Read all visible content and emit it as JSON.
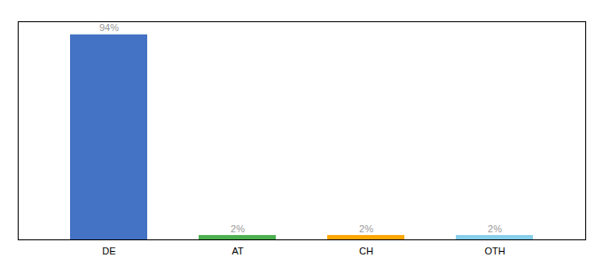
{
  "chart_data": {
    "type": "bar",
    "categories": [
      "DE",
      "AT",
      "CH",
      "OTH"
    ],
    "values": [
      94,
      2,
      2,
      2
    ],
    "value_labels": [
      "94%",
      "2%",
      "2%",
      "2%"
    ],
    "colors": [
      "#4472C4",
      "#4CAF50",
      "#FFA500",
      "#87CEEB"
    ],
    "ylim": [
      0,
      100
    ],
    "data_labels": true,
    "tick_labels": "x"
  }
}
